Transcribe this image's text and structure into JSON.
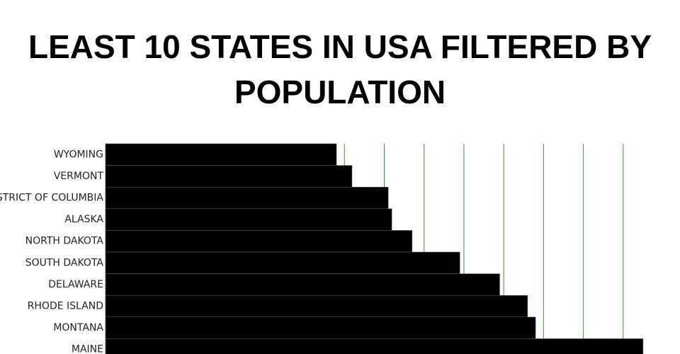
{
  "chart_data": {
    "type": "hbar",
    "title": "LEAST 10 STATES IN USA FILTERED BY POPULATION",
    "categories": [
      "WYOMING",
      "VERMONT",
      "DISTRICT OF COLUMBIA",
      "ALASKA",
      "NORTH DAKOTA",
      "SOUTH DAKOTA",
      "DELAWARE",
      "RHODE ISLAND",
      "MONTANA",
      "MAINE"
    ],
    "values": [
      580000,
      619000,
      710000,
      719000,
      770000,
      890000,
      990000,
      1060000,
      1080000,
      1350000
    ],
    "color": "#000000",
    "grid_color": "#2e9e2e",
    "xlim": [
      0,
      1400000
    ],
    "xticks": [
      0,
      100000,
      200000,
      300000,
      400000,
      500000,
      600000,
      700000,
      800000,
      900000,
      1000000,
      1100000,
      1200000,
      1300000
    ],
    "grid": true
  }
}
